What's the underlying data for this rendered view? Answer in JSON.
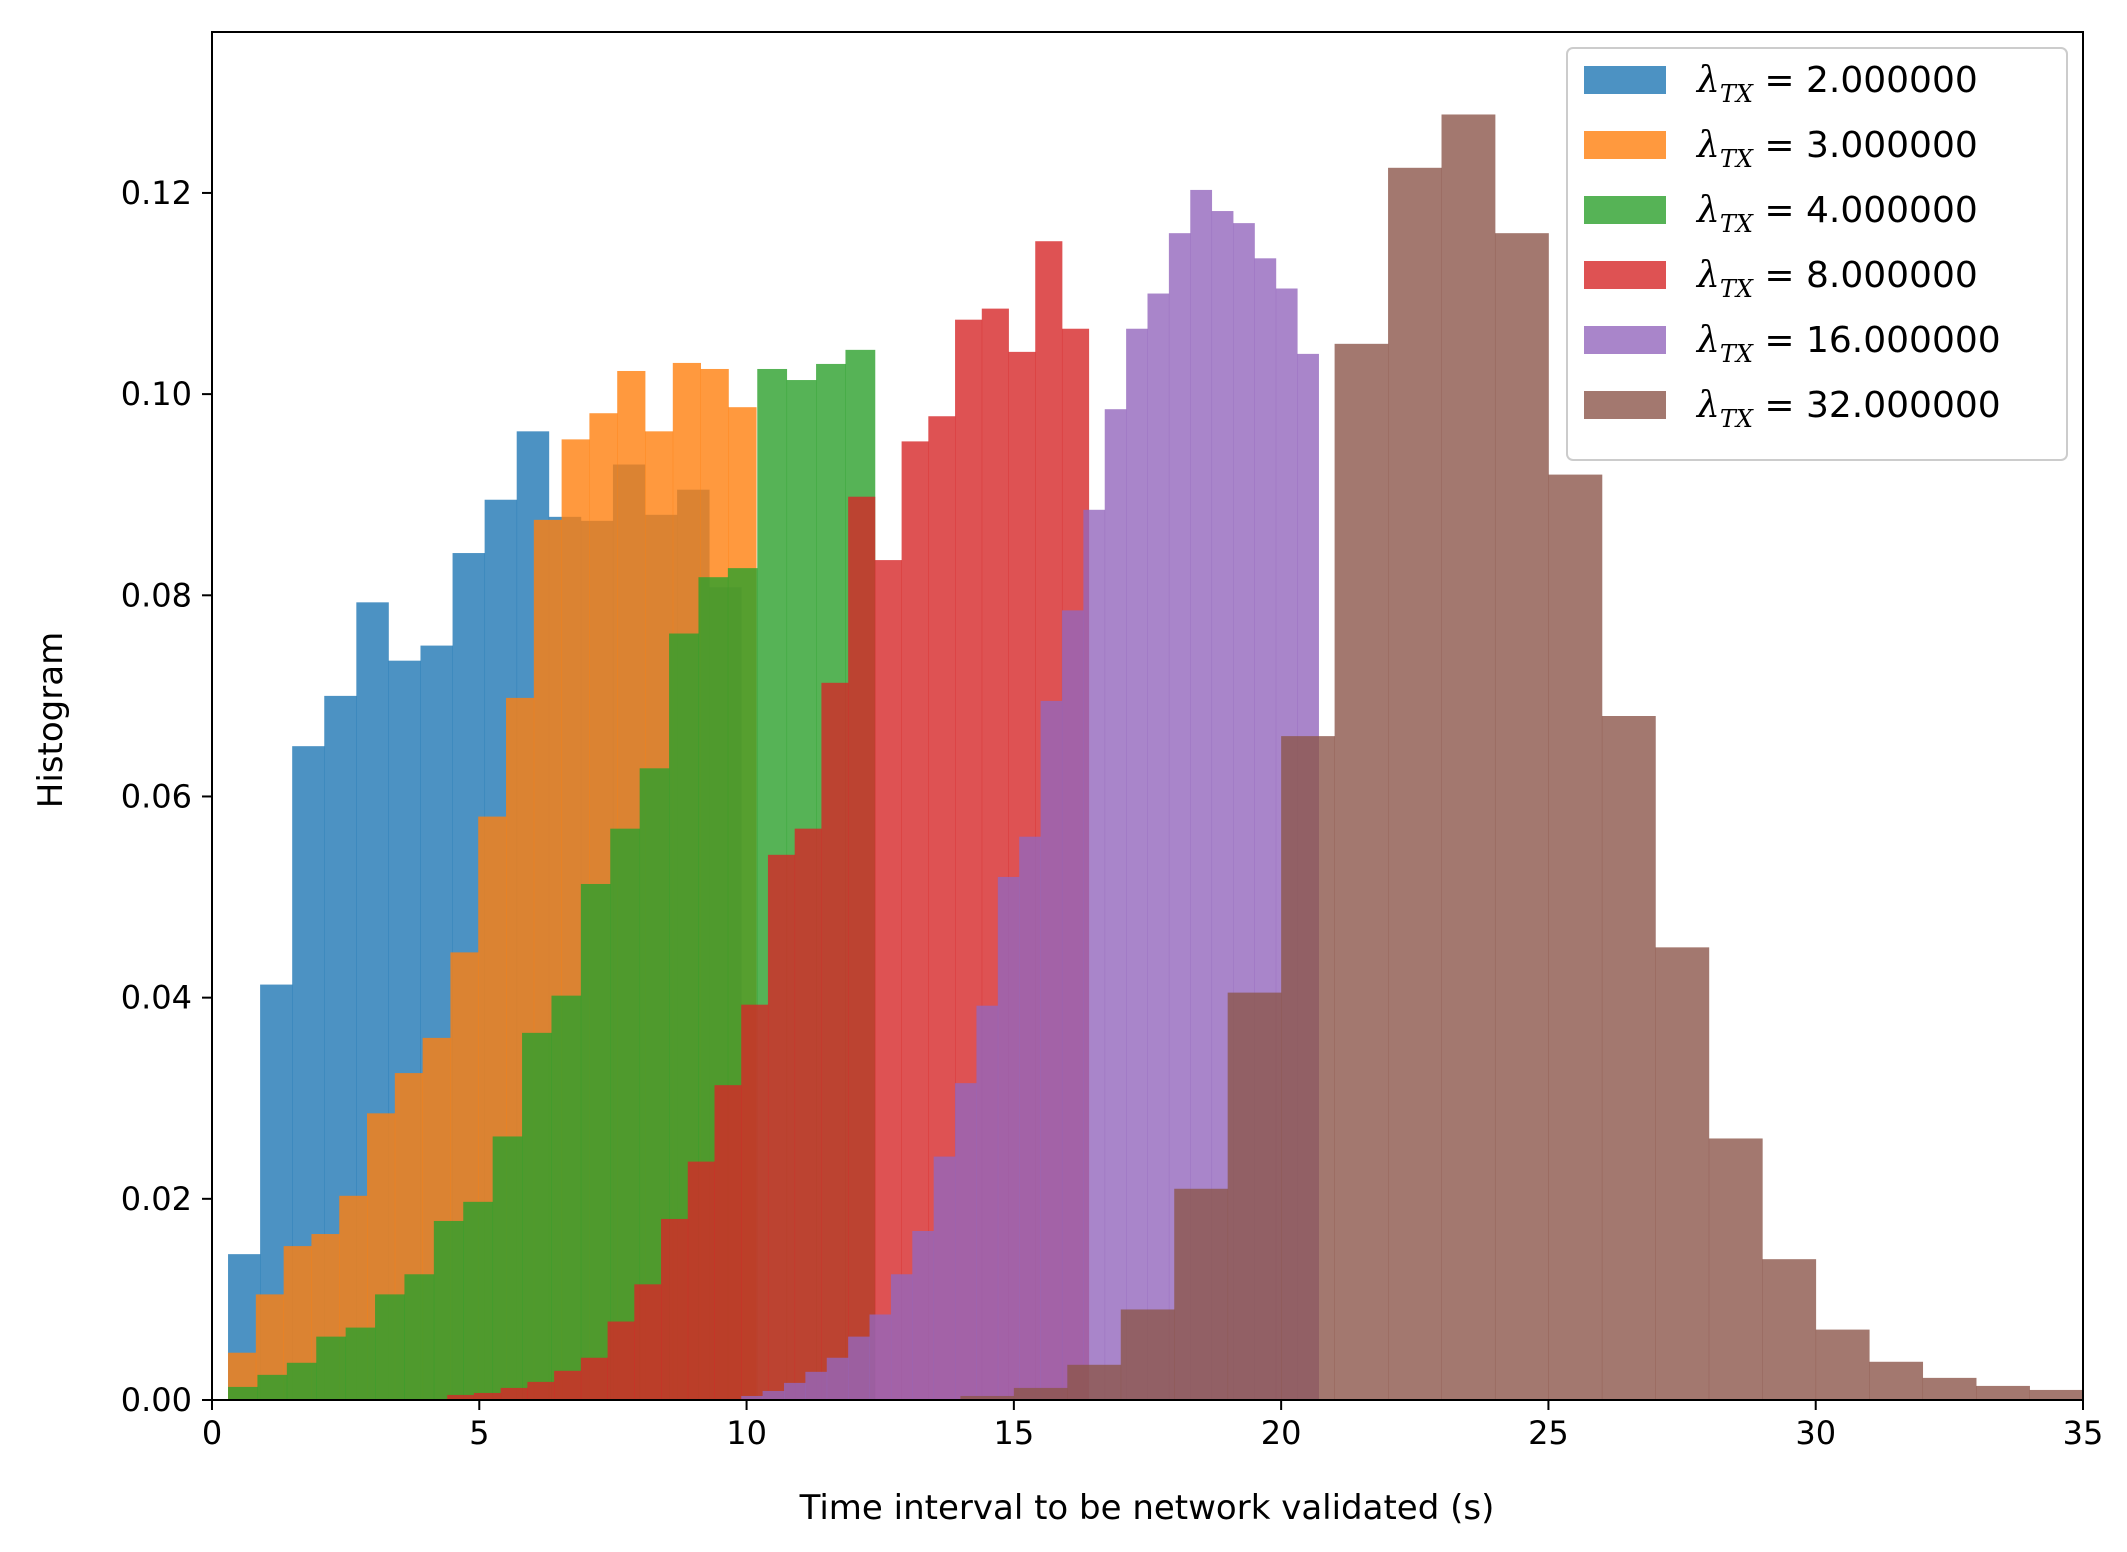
{
  "chart_data": {
    "type": "histogram",
    "title": "",
    "xlabel": "Time interval to be network validated (s)",
    "ylabel": "Histogram",
    "xlim": [
      0,
      35
    ],
    "ylim": [
      0,
      0.136
    ],
    "xticks": [
      0,
      5,
      10,
      15,
      20,
      25,
      30,
      35
    ],
    "xtick_labels": [
      "0",
      "5",
      "10",
      "15",
      "20",
      "25",
      "30",
      "35"
    ],
    "yticks": [
      0.0,
      0.02,
      0.04,
      0.06,
      0.08,
      0.1,
      0.12
    ],
    "ytick_labels": [
      "0.00",
      "0.02",
      "0.04",
      "0.06",
      "0.08",
      "0.10",
      "0.12"
    ],
    "grid": false,
    "legend_position": "top-right",
    "opacity": 0.8,
    "series": [
      {
        "name": "2.000000",
        "legend_prefix": "λ",
        "legend_sub": "TX",
        "color": "#1f77b4",
        "bin_edges": [
          0.3,
          0.9,
          1.5,
          2.1,
          2.7,
          3.3,
          3.9,
          4.5,
          5.1,
          5.7,
          6.3,
          6.9,
          7.5,
          8.1,
          8.7,
          9.3,
          9.9
        ],
        "values": [
          0.0145,
          0.0413,
          0.065,
          0.07,
          0.0793,
          0.0735,
          0.075,
          0.0842,
          0.0895,
          0.0963,
          0.0878,
          0.0874,
          0.093,
          0.088,
          0.0905,
          0.0808
        ]
      },
      {
        "name": "3.000000",
        "legend_prefix": "λ",
        "legend_sub": "TX",
        "color": "#ff7f0e",
        "bin_edges": [
          0.3,
          0.82,
          1.34,
          1.86,
          2.38,
          2.9,
          3.42,
          3.94,
          4.46,
          4.98,
          5.5,
          6.02,
          6.54,
          7.06,
          7.58,
          8.1,
          8.62,
          9.14,
          9.66,
          10.18
        ],
        "values": [
          0.0047,
          0.0105,
          0.0153,
          0.0165,
          0.0203,
          0.0285,
          0.0325,
          0.036,
          0.0445,
          0.058,
          0.0698,
          0.0875,
          0.0955,
          0.0981,
          0.1023,
          0.0963,
          0.1031,
          0.1025,
          0.0987
        ]
      },
      {
        "name": "4.000000",
        "legend_prefix": "λ",
        "legend_sub": "TX",
        "color": "#2ca02c",
        "bin_edges": [
          0.3,
          0.85,
          1.4,
          1.95,
          2.5,
          3.05,
          3.6,
          4.15,
          4.7,
          5.25,
          5.8,
          6.35,
          6.9,
          7.45,
          8.0,
          8.55,
          9.1,
          9.65,
          10.2,
          10.75,
          11.3,
          11.85,
          12.4
        ],
        "values": [
          0.0013,
          0.0025,
          0.0037,
          0.0063,
          0.0072,
          0.0105,
          0.0125,
          0.0178,
          0.0197,
          0.0262,
          0.0365,
          0.0402,
          0.0513,
          0.0568,
          0.0628,
          0.0762,
          0.0818,
          0.0827,
          0.1025,
          0.1014,
          0.103,
          0.1044
        ]
      },
      {
        "name": "8.000000",
        "legend_prefix": "λ",
        "legend_sub": "TX",
        "color": "#d62728",
        "bin_edges": [
          4.4,
          4.9,
          5.4,
          5.9,
          6.4,
          6.9,
          7.4,
          7.9,
          8.4,
          8.9,
          9.4,
          9.9,
          10.4,
          10.9,
          11.4,
          11.9,
          12.4,
          12.9,
          13.4,
          13.9,
          14.4,
          14.9,
          15.4,
          15.9,
          16.4
        ],
        "values": [
          0.0005,
          0.0007,
          0.0012,
          0.0018,
          0.0029,
          0.0042,
          0.0078,
          0.0115,
          0.018,
          0.0237,
          0.0313,
          0.0393,
          0.0542,
          0.0568,
          0.0713,
          0.0898,
          0.0835,
          0.0953,
          0.0978,
          0.1074,
          0.1085,
          0.1042,
          0.1152,
          0.1065
        ]
      },
      {
        "name": "16.000000",
        "legend_prefix": "λ",
        "legend_sub": "TX",
        "color": "#9467bd",
        "bin_edges": [
          9.9,
          10.3,
          10.7,
          11.1,
          11.5,
          11.9,
          12.3,
          12.7,
          13.1,
          13.5,
          13.9,
          14.3,
          14.7,
          15.1,
          15.5,
          15.9,
          16.3,
          16.7,
          17.1,
          17.5,
          17.9,
          18.3,
          18.7,
          19.1,
          19.5,
          19.9,
          20.3,
          20.7
        ],
        "values": [
          0.0004,
          0.0009,
          0.0017,
          0.0028,
          0.0042,
          0.0063,
          0.0085,
          0.0125,
          0.0168,
          0.0242,
          0.0315,
          0.0392,
          0.052,
          0.056,
          0.0695,
          0.0785,
          0.0885,
          0.0985,
          0.1065,
          0.11,
          0.116,
          0.1203,
          0.1182,
          0.117,
          0.1135,
          0.1105,
          0.104
        ]
      },
      {
        "name": "32.000000",
        "legend_prefix": "λ",
        "legend_sub": "TX",
        "color": "#8c564b",
        "bin_edges": [
          14.0,
          15.0,
          16.0,
          17.0,
          18.0,
          19.0,
          20.0,
          21.0,
          22.0,
          23.0,
          24.0,
          25.0,
          26.0,
          27.0,
          28.0,
          29.0,
          30.0,
          31.0,
          32.0,
          33.0,
          34.0,
          35.0
        ],
        "values": [
          0.0004,
          0.0012,
          0.0035,
          0.009,
          0.021,
          0.0405,
          0.066,
          0.105,
          0.1225,
          0.1278,
          0.116,
          0.092,
          0.068,
          0.045,
          0.026,
          0.014,
          0.007,
          0.0038,
          0.0022,
          0.0014,
          0.001
        ]
      }
    ]
  }
}
